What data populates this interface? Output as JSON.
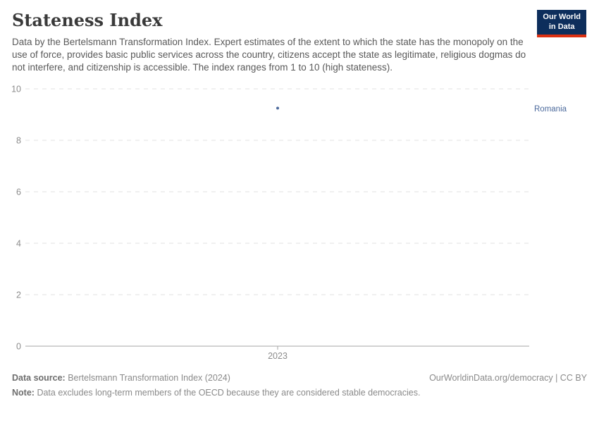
{
  "header": {
    "title": "Stateness Index",
    "subtitle": "Data by the Bertelsmann Transformation Index. Expert estimates of the extent to which the state has the monopoly on the use of force, provides basic public services across the country, citizens accept the state as legitimate, religious dogmas do not interfere, and citizenship is accessible. The index ranges from 1 to 10 (high stateness).",
    "logo": {
      "line1": "Our World",
      "line2": "in Data",
      "bg_color": "#0d2e5c",
      "stripe_color": "#dc3012"
    }
  },
  "chart_data": {
    "type": "scatter",
    "title": "Stateness Index",
    "x": [
      2023
    ],
    "xticks": [
      "2023"
    ],
    "series": [
      {
        "name": "Romania",
        "values": [
          9.25
        ],
        "color": "#4c6a9c"
      }
    ],
    "ylim": [
      0,
      10
    ],
    "yticks": [
      0,
      2,
      4,
      6,
      8,
      10
    ],
    "grid": "dashed-horizontal",
    "legend_position": "right-entity-label"
  },
  "footer": {
    "data_source_label": "Data source:",
    "data_source_value": "Bertelsmann Transformation Index (2024)",
    "note_label": "Note:",
    "note_value": "Data excludes long-term members of the OECD because they are considered stable democracies.",
    "credit": "OurWorldinData.org/democracy | CC BY"
  }
}
